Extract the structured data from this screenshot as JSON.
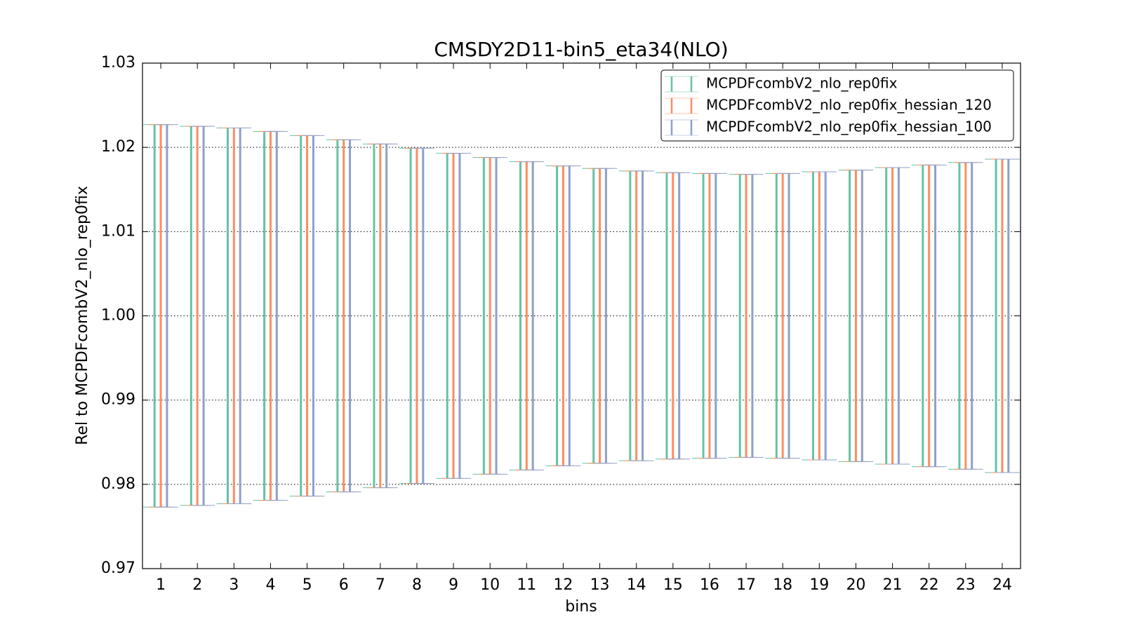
{
  "chart_data": {
    "type": "errorbar",
    "title": "CMSDY2D11-bin5_eta34(NLO)",
    "xlabel": "bins",
    "ylabel": "Rel to MCPDFcombV2_nlo_rep0fix",
    "x": [
      1,
      2,
      3,
      4,
      5,
      6,
      7,
      8,
      9,
      10,
      11,
      12,
      13,
      14,
      15,
      16,
      17,
      18,
      19,
      20,
      21,
      22,
      23,
      24
    ],
    "xlim": [
      0.5,
      24.5
    ],
    "xticks": [
      1,
      2,
      3,
      4,
      5,
      6,
      7,
      8,
      9,
      10,
      11,
      12,
      13,
      14,
      15,
      16,
      17,
      18,
      19,
      20,
      21,
      22,
      23,
      24
    ],
    "ylim": [
      0.97,
      1.03
    ],
    "yticks": [
      0.97,
      0.98,
      0.99,
      {
        "value": 1.0,
        "label": "1.00"
      },
      1.01,
      1.02,
      1.03
    ],
    "grid": true,
    "legend": "upper right",
    "series": [
      {
        "name": "MCPDFcombV2_nlo_rep0fix",
        "color": "#66c2a5",
        "values": [
          1,
          1,
          1,
          1,
          1,
          1,
          1,
          1,
          1,
          1,
          1,
          1,
          1,
          1,
          1,
          1,
          1,
          1,
          1,
          1,
          1,
          1,
          1,
          1
        ],
        "errors": [
          0.0227,
          0.0225,
          0.0223,
          0.0219,
          0.0214,
          0.0209,
          0.0204,
          0.0199,
          0.0193,
          0.0188,
          0.0183,
          0.0178,
          0.0175,
          0.0172,
          0.017,
          0.0169,
          0.0168,
          0.0169,
          0.0171,
          0.0173,
          0.0176,
          0.0179,
          0.0182,
          0.0186
        ]
      },
      {
        "name": "MCPDFcombV2_nlo_rep0fix_hessian_120",
        "color": "#fc8d62",
        "values": [
          1,
          1,
          1,
          1,
          1,
          1,
          1,
          1,
          1,
          1,
          1,
          1,
          1,
          1,
          1,
          1,
          1,
          1,
          1,
          1,
          1,
          1,
          1,
          1
        ],
        "errors": [
          0.0227,
          0.0225,
          0.0223,
          0.0219,
          0.0214,
          0.0209,
          0.0204,
          0.0199,
          0.0193,
          0.0188,
          0.0183,
          0.0178,
          0.0175,
          0.0172,
          0.017,
          0.0169,
          0.0168,
          0.0169,
          0.0171,
          0.0173,
          0.0176,
          0.0179,
          0.0182,
          0.0186
        ]
      },
      {
        "name": "MCPDFcombV2_nlo_rep0fix_hessian_100",
        "color": "#8da0cb",
        "values": [
          1,
          1,
          1,
          1,
          1,
          1,
          1,
          1,
          1,
          1,
          1,
          1,
          1,
          1,
          1,
          1,
          1,
          1,
          1,
          1,
          1,
          1,
          1,
          1
        ],
        "errors": [
          0.0227,
          0.0225,
          0.0223,
          0.0219,
          0.0214,
          0.0209,
          0.0204,
          0.0199,
          0.0193,
          0.0188,
          0.0183,
          0.0178,
          0.0175,
          0.0172,
          0.017,
          0.0169,
          0.0168,
          0.0169,
          0.0171,
          0.0173,
          0.0176,
          0.0179,
          0.0182,
          0.0186
        ]
      }
    ]
  }
}
